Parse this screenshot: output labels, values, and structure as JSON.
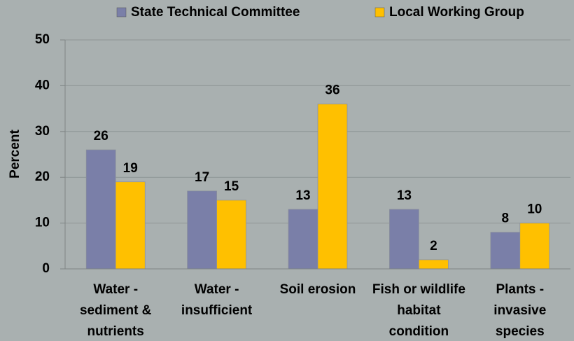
{
  "chart_data": {
    "type": "bar",
    "y_label": "Percent",
    "categories": [
      [
        "Water -",
        "sediment &",
        "nutrients"
      ],
      [
        "Water -",
        "insufficient"
      ],
      [
        "Soil erosion"
      ],
      [
        "Fish or wildlife",
        "habitat",
        "condition"
      ],
      [
        "Plants -",
        "invasive",
        "species"
      ]
    ],
    "series": [
      {
        "name": "State Technical Committee",
        "color": "#7a7fa8",
        "values": [
          26,
          17,
          13,
          13,
          8
        ]
      },
      {
        "name": "Local Working Group",
        "color": "#ffc000",
        "values": [
          19,
          15,
          36,
          2,
          10
        ]
      }
    ],
    "ylim": [
      0,
      50
    ],
    "yticks": [
      0,
      10,
      20,
      30,
      40,
      50
    ],
    "grid": true,
    "legend": "top"
  }
}
